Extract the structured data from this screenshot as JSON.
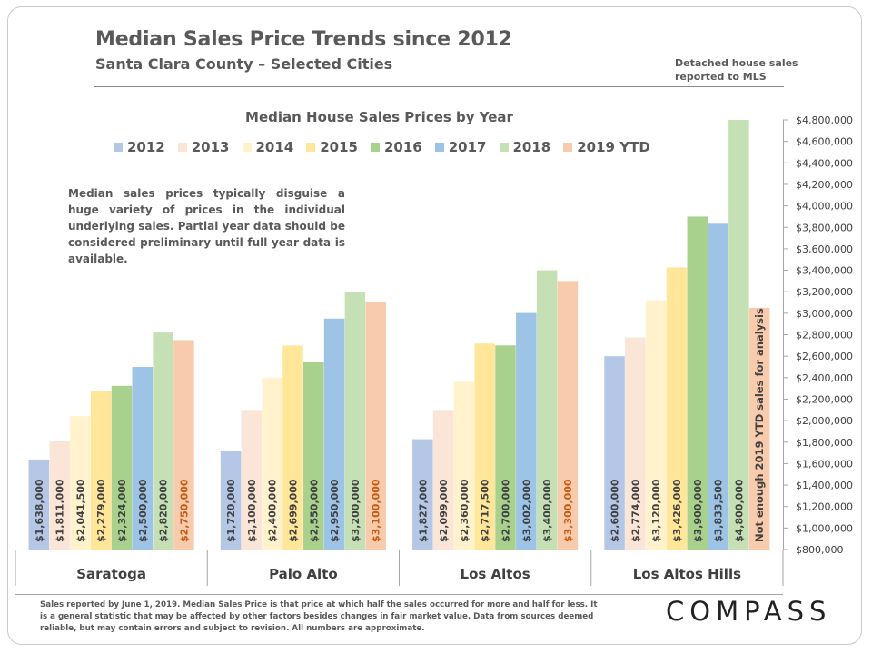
{
  "header": {
    "title": "Median Sales Price Trends since 2012",
    "subtitle": "Santa Clara County – Selected Cities",
    "note": "Detached house sales reported to MLS"
  },
  "description": "Median sales prices typically disguise a huge variety of prices in the individual underlying sales. Partial year data should be considered preliminary until full year data is available.",
  "footnote": "Sales reported by June 1, 2019. Median Sales Price is that price at which half the sales occurred for more and half for less. It is a general statistic that may be affected by other factors besides changes in fair market value. Data from sources deemed reliable, but may contain errors and subject to revision.  All numbers are approximate.",
  "logo": "COMPASS",
  "series_colors": [
    "#b4c7e7",
    "#fbe5d6",
    "#fff2cc",
    "#ffe699",
    "#a9d18e",
    "#9dc3e6",
    "#c5e0b4",
    "#f8cbad"
  ],
  "label_colors": {
    "default": "#404040",
    "ytd": "#c55a11"
  },
  "chart_data": {
    "type": "bar",
    "title": "Median House Sales Prices by Year",
    "categories": [
      "Saratoga",
      "Palo Alto",
      "Los Altos",
      "Los Altos Hills"
    ],
    "series": [
      {
        "name": "2012",
        "values": [
          1638000,
          1720000,
          1827000,
          2600000
        ],
        "labels": [
          "$1,638,000",
          "$1,720,000",
          "$1,827,000",
          "$2,600,000"
        ]
      },
      {
        "name": "2013",
        "values": [
          1811000,
          2100000,
          2099000,
          2774000
        ],
        "labels": [
          "$1,811,000",
          "$2,100,000",
          "$2,099,000",
          "$2,774,000"
        ]
      },
      {
        "name": "2014",
        "values": [
          2041500,
          2400000,
          2360000,
          3120000
        ],
        "labels": [
          "$2,041,500",
          "$2,400,000",
          "$2,360,000",
          "$3,120,000"
        ]
      },
      {
        "name": "2015",
        "values": [
          2279000,
          2699000,
          2717500,
          3426000
        ],
        "labels": [
          "$2,279,000",
          "$2,699,000",
          "$2,717,500",
          "$3,426,000"
        ]
      },
      {
        "name": "2016",
        "values": [
          2324000,
          2550000,
          2700000,
          3900000
        ],
        "labels": [
          "$2,324,000",
          "$2,550,000",
          "$2,700,000",
          "$3,900,000"
        ]
      },
      {
        "name": "2017",
        "values": [
          2500000,
          2950000,
          3002000,
          3833500
        ],
        "labels": [
          "$2,500,000",
          "$2,950,000",
          "$3,002,000",
          "$3,833,500"
        ]
      },
      {
        "name": "2018",
        "values": [
          2820000,
          3200000,
          3400000,
          4800000
        ],
        "labels": [
          "$2,820,000",
          "$3,200,000",
          "$3,400,000",
          "$4,800,000"
        ]
      },
      {
        "name": "2019 YTD",
        "values": [
          2750000,
          3100000,
          3300000,
          3050000
        ],
        "labels": [
          "$2,750,000",
          "$3,100,000",
          "$3,300,000",
          "Not enough 2019 YTD sales for analysis"
        ]
      }
    ],
    "ylim": [
      800000,
      4800000
    ],
    "y_ticks": [
      800000,
      1000000,
      1200000,
      1400000,
      1600000,
      1800000,
      2000000,
      2200000,
      2400000,
      2600000,
      2800000,
      3000000,
      3200000,
      3400000,
      3600000,
      3800000,
      4000000,
      4200000,
      4400000,
      4600000,
      4800000
    ],
    "y_tick_labels": [
      "$800,000",
      "$1,000,000",
      "$1,200,000",
      "$1,400,000",
      "$1,600,000",
      "$1,800,000",
      "$2,000,000",
      "$2,200,000",
      "$2,400,000",
      "$2,600,000",
      "$2,800,000",
      "$3,000,000",
      "$3,200,000",
      "$3,400,000",
      "$3,600,000",
      "$3,800,000",
      "$4,000,000",
      "$4,200,000",
      "$4,400,000",
      "$4,600,000",
      "$4,800,000"
    ],
    "y_axis_position": "right",
    "legend": "top",
    "grid": false
  }
}
